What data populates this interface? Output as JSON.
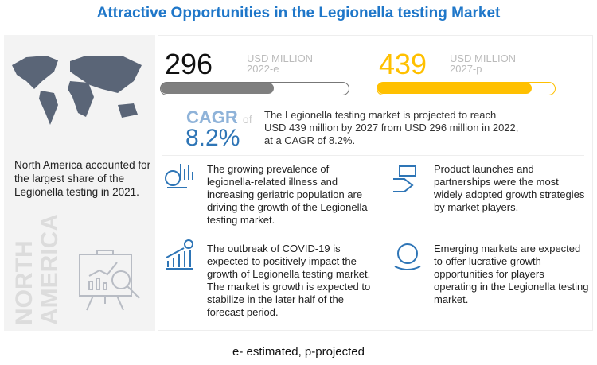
{
  "title": "Attractive Opportunities in the Legionella testing Market",
  "left_panel": {
    "text": "North America accounted for the largest share of the Legionella testing in 2021.",
    "region_line1": "NORTH",
    "region_line2": "AMERICA"
  },
  "value_2022": {
    "value": "296",
    "unit": "USD MILLION",
    "year": "2022-e",
    "bar_fill_percent": 60,
    "color": "#7f7f7f"
  },
  "value_2027": {
    "value": "439",
    "unit": "USD MILLION",
    "year": "2027-p",
    "bar_fill_percent": 87,
    "color": "#ffc000"
  },
  "cagr": {
    "label": "CAGR",
    "of": "of",
    "value": "8.2%",
    "color": "#2e75b6",
    "text": "The Legionella testing market is projected to reach USD 439 million by 2027 from USD 296 million in 2022, at a CAGR of 8.2%."
  },
  "cards": [
    {
      "icon": "chart-hand-icon",
      "text": "The growing prevalence of legionella-related illness and increasing geriatric population are driving the growth of the Legionella testing market."
    },
    {
      "icon": "money-hand-icon",
      "text": "Product launches and partnerships were the most widely adopted growth strategies by market players."
    },
    {
      "icon": "dollar-growth-chart-icon",
      "text": "The outbreak of COVID-19 is expected to positively impact the growth of Legionella testing market. The market is growth is expected to stabilize in the later half of the forecast period."
    },
    {
      "icon": "globe-hand-icon",
      "text": "Emerging markets are expected to offer lucrative growth opportunities for players operating in the Legionella testing market."
    }
  ],
  "footer": "e- estimated, p-projected"
}
